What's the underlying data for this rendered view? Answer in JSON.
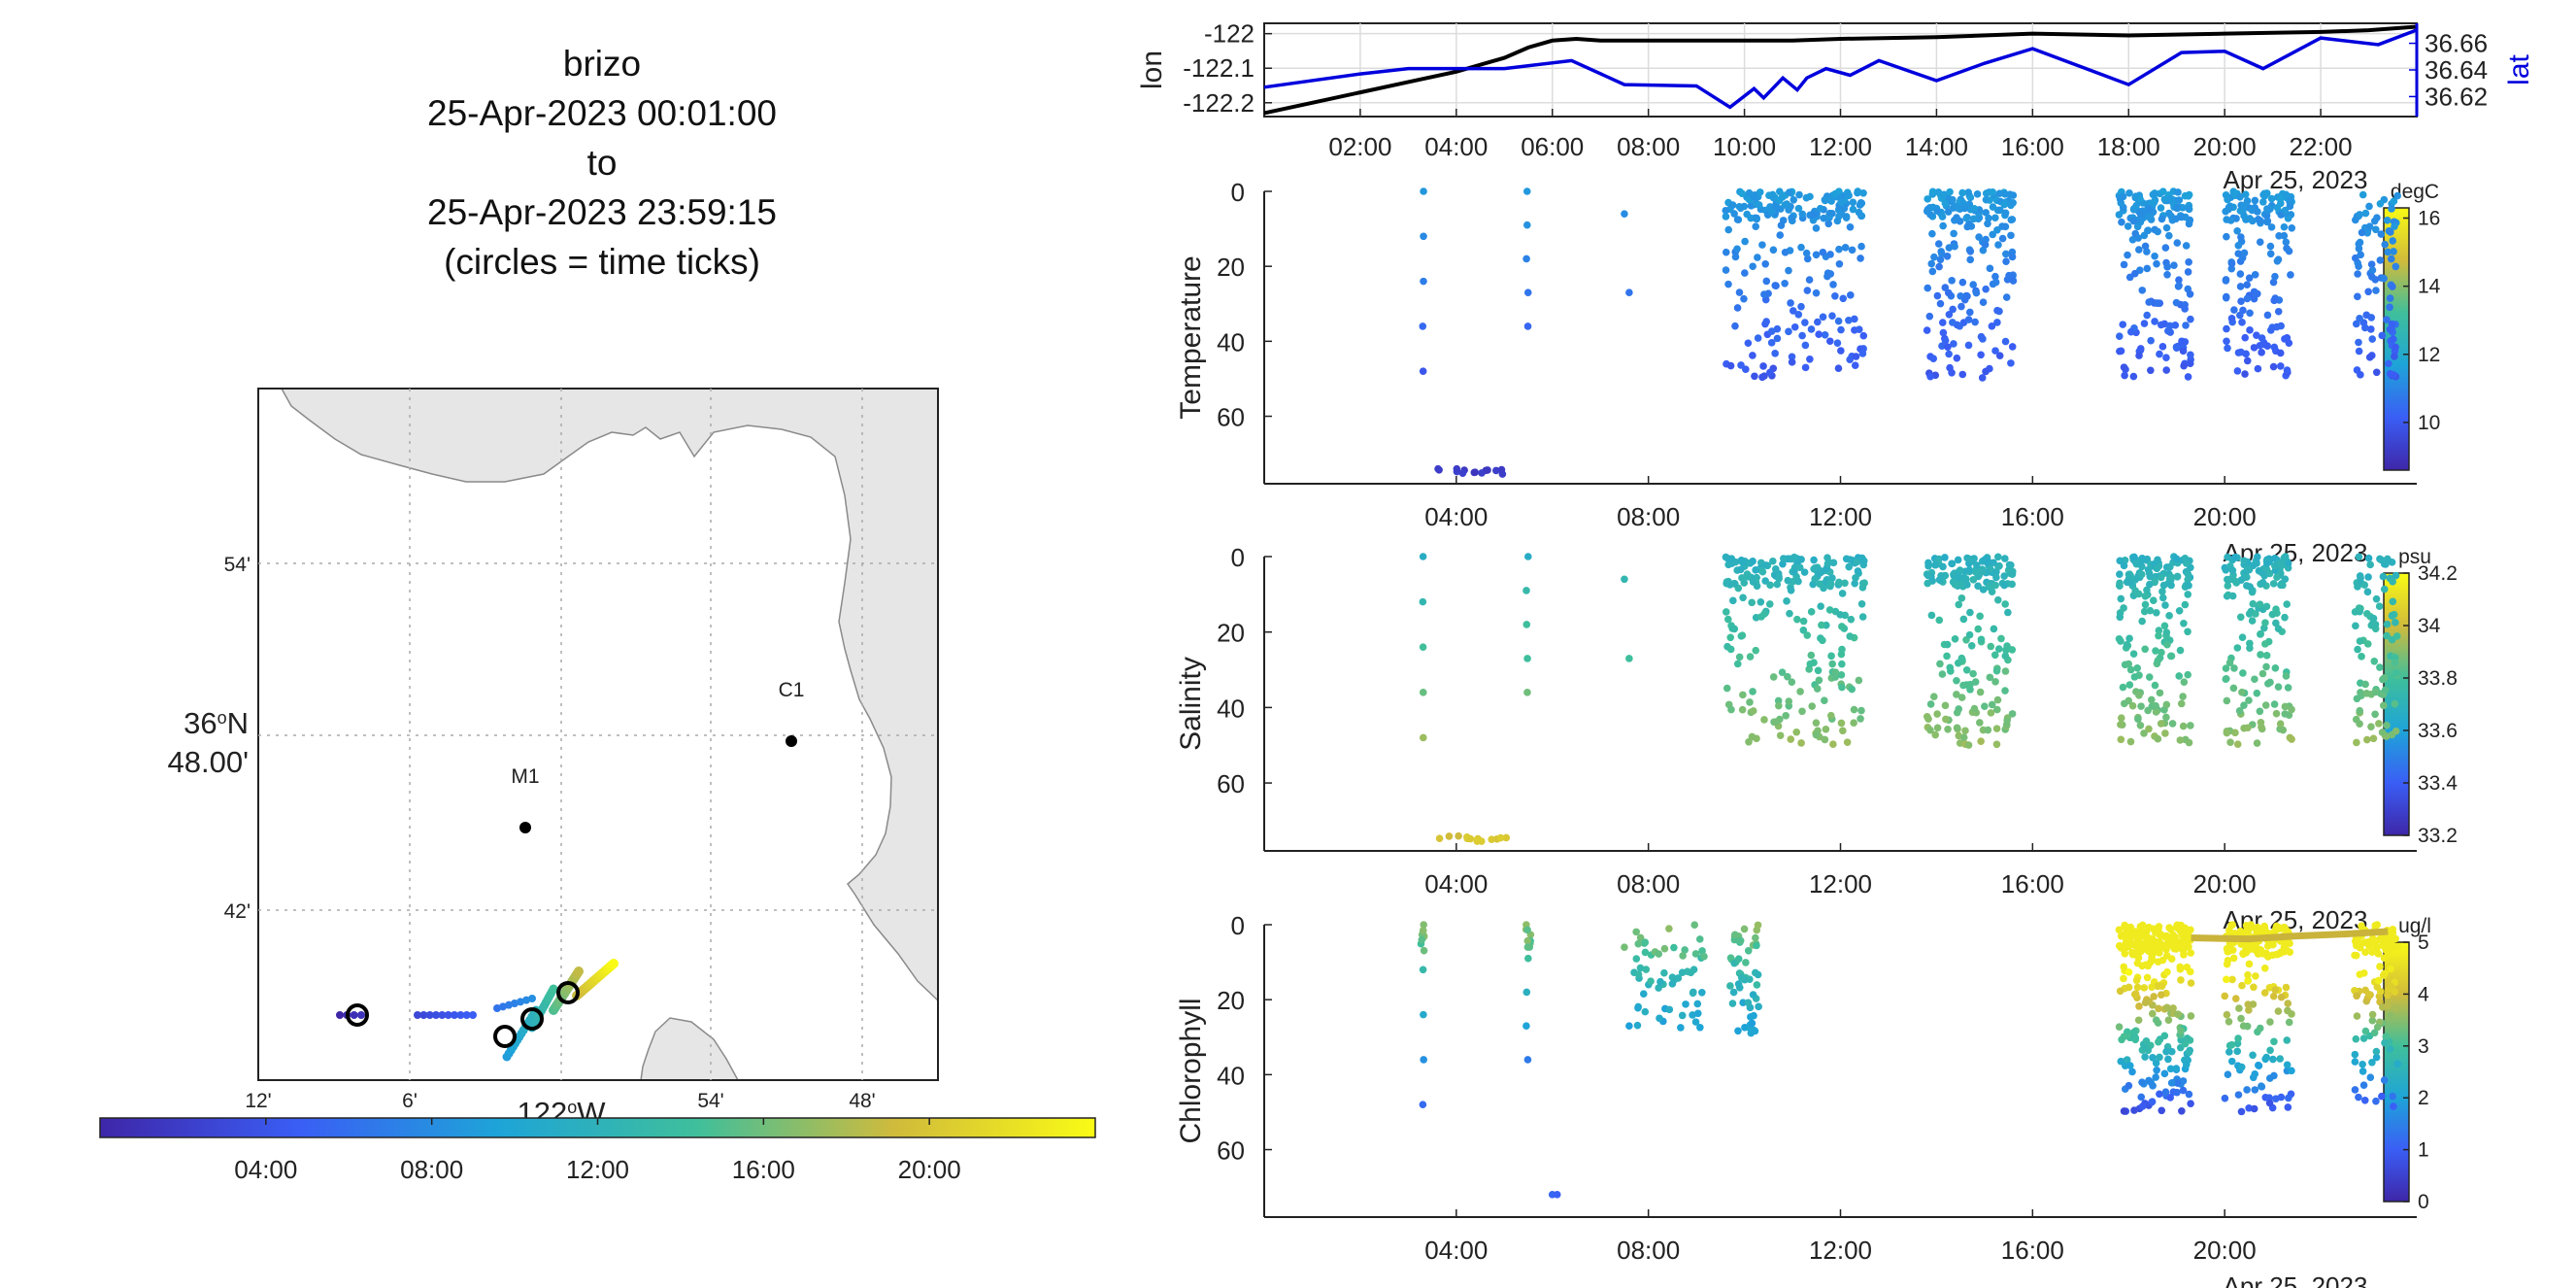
{
  "title_lines": [
    "brizo",
    "25-Apr-2023 00:01:00",
    "to",
    "25-Apr-2023 23:59:15",
    "(circles = time ticks)"
  ],
  "map": {
    "lat_ticks": [
      "54'",
      "42'"
    ],
    "lat_main_line1": "36",
    "lat_main_sup": "o",
    "lat_main_n": "N",
    "lat_main_line2": "48.00'",
    "lon_ticks": [
      "12'",
      "6'",
      "54'",
      "48'"
    ],
    "lon_main": "122",
    "lon_main_sup": "o",
    "lon_main_w": "W",
    "stations": [
      {
        "name": "M1"
      },
      {
        "name": "C1"
      }
    ],
    "time_colorbar_ticks": [
      "04:00",
      "08:00",
      "12:00",
      "16:00",
      "20:00"
    ]
  },
  "nav_chart": {
    "ylabel_left": "lon",
    "ylabel_right": "lat",
    "lon_ticks": [
      "-122",
      "-122.1",
      "-122.2"
    ],
    "lat_ticks": [
      "36.66",
      "36.64",
      "36.62"
    ],
    "x_ticks": [
      "02:00",
      "04:00",
      "06:00",
      "08:00",
      "10:00",
      "12:00",
      "14:00",
      "16:00",
      "18:00",
      "20:00",
      "22:00"
    ],
    "date_label": "Apr 25, 2023"
  },
  "depth_panels": {
    "y_ticks": [
      "0",
      "20",
      "40",
      "60"
    ],
    "x_ticks": [
      "04:00",
      "08:00",
      "12:00",
      "16:00",
      "20:00"
    ],
    "date_label": "Apr 25, 2023"
  },
  "panels": [
    {
      "ylabel": "Temperature",
      "unit": "degC",
      "cbar_ticks": [
        "16",
        "14",
        "12",
        "10"
      ]
    },
    {
      "ylabel": "Salinity",
      "unit": "psu",
      "cbar_ticks": [
        "34.2",
        "34",
        "33.8",
        "33.6",
        "33.4",
        "33.2"
      ]
    },
    {
      "ylabel": "Chlorophyll",
      "unit": "ug/l",
      "cbar_ticks": [
        "5",
        "4",
        "3",
        "2",
        "1",
        "0"
      ]
    }
  ],
  "colors": {
    "line_lon": "#000000",
    "line_lat": "#0000dd",
    "land": "#e6e6e6"
  },
  "chart_data": [
    {
      "type": "line",
      "x_unit": "hour of 25-Apr-2023",
      "ylim_lon": [
        -122.24,
        -121.97
      ],
      "ylim_lat": [
        36.605,
        36.675
      ],
      "xlim": [
        0,
        24
      ],
      "series": [
        {
          "name": "lon",
          "x": [
            0,
            1,
            2,
            3,
            4,
            5,
            5.5,
            6,
            6.5,
            7,
            8,
            9,
            10,
            11,
            12,
            14,
            16,
            18,
            20,
            22,
            23,
            24
          ],
          "y": [
            -122.23,
            -122.2,
            -122.17,
            -122.14,
            -122.11,
            -122.07,
            -122.04,
            -122.02,
            -122.015,
            -122.02,
            -122.02,
            -122.02,
            -122.02,
            -122.02,
            -122.015,
            -122.01,
            -122.0,
            -122.005,
            -122.0,
            -121.995,
            -121.99,
            -121.98
          ]
        },
        {
          "name": "lat",
          "x": [
            0,
            2,
            3,
            5,
            6.4,
            7.5,
            9,
            9.7,
            10.2,
            10.4,
            10.8,
            11.1,
            11.3,
            11.7,
            12.2,
            12.8,
            14,
            15,
            16,
            18,
            19.1,
            20,
            20.8,
            22,
            23.2,
            24
          ],
          "y": [
            36.627,
            36.637,
            36.641,
            36.641,
            36.647,
            36.629,
            36.628,
            36.612,
            36.626,
            36.619,
            36.634,
            36.625,
            36.634,
            36.641,
            36.636,
            36.647,
            36.632,
            36.645,
            36.656,
            36.629,
            36.653,
            36.654,
            36.641,
            36.664,
            36.659,
            36.67
          ]
        }
      ]
    }
  ]
}
